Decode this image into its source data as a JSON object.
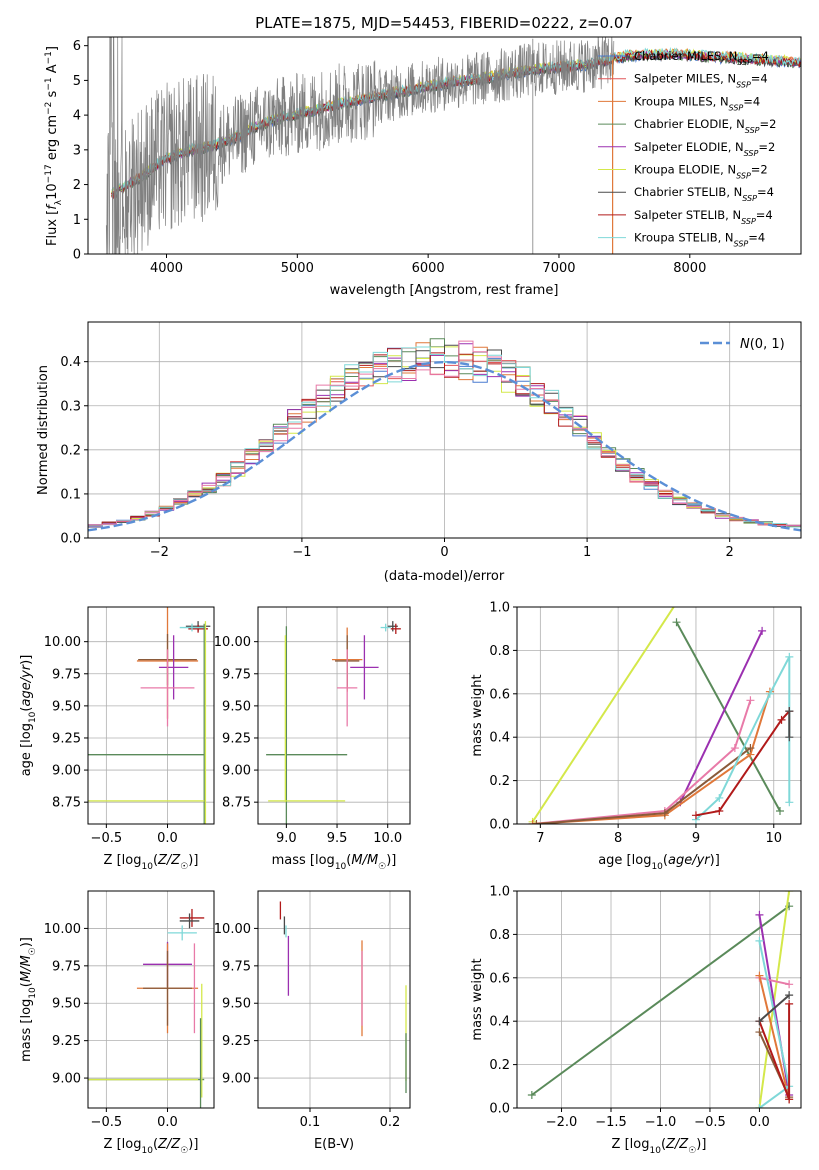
{
  "figure_title": "PLATE=1875, MJD=54453, FIBERID=0222, z=0.07",
  "colors": {
    "chabrier_miles": "#4a7bd0",
    "salpeter_miles": "#e15759",
    "kroupa_miles": "#8a5a3a",
    "chabrier_elodie": "#5a8a5a",
    "salpeter_elodie": "#9b30b0",
    "kroupa_elodie": "#d4e84a",
    "chabrier_stelib": "#4a4a4a",
    "salpeter_stelib": "#b11a1a",
    "kroupa_stelib": "#7fd8d8",
    "extra_pink": "#e87aa8",
    "extra_orange": "#e0783a",
    "data": "#808080",
    "normal": "#5b8fd6"
  },
  "chart_data": [
    {
      "id": "spectrum",
      "type": "line",
      "title": "PLATE=1875, MJD=54453, FIBERID=0222, z=0.07",
      "xlabel": "wavelength [Angstrom, rest frame]",
      "ylabel": "Flux [f_λ10^-17 erg cm^-2 s^-1 A^-1]",
      "xlim": [
        3400,
        8850
      ],
      "ylim": [
        0,
        6.25
      ],
      "xticks": [
        4000,
        5000,
        6000,
        7000,
        8000
      ],
      "yticks": [
        0,
        1,
        2,
        3,
        4,
        5,
        6
      ],
      "legend_position": "right",
      "legend": [
        {
          "main": "Chabrier MILES, N",
          "sub": "SSP",
          "tail": "=4",
          "color": "#4a7bd0"
        },
        {
          "main": "Salpeter MILES, N",
          "sub": "SSP",
          "tail": "=4",
          "color": "#e15759"
        },
        {
          "main": "Kroupa MILES, N",
          "sub": "SSP",
          "tail": "=4",
          "color": "#e0783a"
        },
        {
          "main": "Chabrier ELODIE, N",
          "sub": "SSP",
          "tail": "=2",
          "color": "#5a8a5a"
        },
        {
          "main": "Salpeter ELODIE, N",
          "sub": "SSP",
          "tail": "=2",
          "color": "#9b30b0"
        },
        {
          "main": "Kroupa ELODIE, N",
          "sub": "SSP",
          "tail": "=2",
          "color": "#d4e84a"
        },
        {
          "main": "Chabrier STELIB, N",
          "sub": "SSP",
          "tail": "=4",
          "color": "#4a4a4a"
        },
        {
          "main": "Salpeter STELIB, N",
          "sub": "SSP",
          "tail": "=4",
          "color": "#b11a1a"
        },
        {
          "main": "Kroupa STELIB, N",
          "sub": "SSP",
          "tail": "=4",
          "color": "#7fd8d8"
        }
      ],
      "continuum": {
        "x": [
          3580,
          3700,
          3800,
          3900,
          4000,
          4100,
          4200,
          4300,
          4500,
          4700,
          4900,
          5100,
          5300,
          5500,
          5700,
          5900,
          6100,
          6300,
          6500,
          6700,
          6900,
          7100,
          7300,
          7500,
          7700,
          7900,
          8100,
          8300,
          8500,
          8700,
          8850
        ],
        "y": [
          1.7,
          2.0,
          2.2,
          2.5,
          2.75,
          2.9,
          3.0,
          3.05,
          3.3,
          3.7,
          3.95,
          4.1,
          4.3,
          4.45,
          4.6,
          4.75,
          4.9,
          5.0,
          5.1,
          5.25,
          5.35,
          5.4,
          5.5,
          5.7,
          5.75,
          5.75,
          5.7,
          5.65,
          5.6,
          5.55,
          5.5
        ]
      }
    },
    {
      "id": "residuals",
      "type": "step",
      "xlabel": "(data-model)/error",
      "ylabel": "Normed distribution",
      "xlim": [
        -2.5,
        2.5
      ],
      "ylim": [
        0,
        0.49
      ],
      "xticks": [
        -2,
        -1,
        0,
        1,
        2
      ],
      "yticks": [
        0.0,
        0.1,
        0.2,
        0.3,
        0.4
      ],
      "legend": [
        {
          "label": "N(0, 1)",
          "color": "#5b8fd6"
        }
      ],
      "envelope": {
        "x": [
          -2.5,
          -2.2,
          -2.0,
          -1.8,
          -1.6,
          -1.4,
          -1.2,
          -1.0,
          -0.8,
          -0.6,
          -0.4,
          -0.2,
          0.0,
          0.2,
          0.4,
          0.6,
          0.8,
          1.0,
          1.2,
          1.4,
          1.6,
          1.8,
          2.0,
          2.2,
          2.5
        ],
        "y": [
          0.025,
          0.04,
          0.06,
          0.09,
          0.12,
          0.17,
          0.22,
          0.28,
          0.33,
          0.37,
          0.39,
          0.4,
          0.41,
          0.4,
          0.38,
          0.34,
          0.29,
          0.24,
          0.18,
          0.13,
          0.09,
          0.065,
          0.045,
          0.035,
          0.025
        ]
      }
    },
    {
      "id": "age_vs_Z",
      "type": "errorbar",
      "xlabel": "Z [log10(Z/Z☉)]",
      "ylabel": "age  [log10(age/yr)]",
      "xlim": [
        -0.65,
        0.38
      ],
      "ylim": [
        8.58,
        10.27
      ],
      "xticks": [
        -0.5,
        0.0
      ],
      "yticks": [
        8.75,
        9.0,
        9.25,
        9.5,
        9.75,
        10.0
      ],
      "points": [
        {
          "x": 0.25,
          "y": 10.12,
          "xerr": 0.1,
          "yerr": 0.04,
          "color": "#4a4a4a"
        },
        {
          "x": 0.25,
          "y": 10.1,
          "xerr": 0.08,
          "yerr": 0.03,
          "color": "#b11a1a"
        },
        {
          "x": 0.2,
          "y": 10.11,
          "xerr": 0.1,
          "yerr": 0.03,
          "color": "#7fd8d8"
        },
        {
          "x": 0.0,
          "y": 9.85,
          "xerr": 0.25,
          "yerr": 0.45,
          "color": "#e0783a"
        },
        {
          "x": 0.0,
          "y": 9.86,
          "xerr": 0.24,
          "yerr": 0.2,
          "color": "#8a5a3a"
        },
        {
          "x": 0.05,
          "y": 9.8,
          "xerr": 0.12,
          "yerr": 0.25,
          "color": "#9b30b0"
        },
        {
          "x": 0.0,
          "y": 9.64,
          "xerr": 0.22,
          "yerr": 0.3,
          "color": "#e87aa8"
        },
        {
          "x": -0.35,
          "y": 9.12,
          "xerr": 0.65,
          "yerr": 0.0,
          "color": "#5a8a5a"
        },
        {
          "x": 0.3,
          "y": 9.12,
          "xerr": 0.0,
          "yerr": 1.02,
          "color": "#5a8a5a"
        },
        {
          "x": -0.25,
          "y": 8.76,
          "xerr": 0.55,
          "yerr": 0.0,
          "color": "#d4e84a"
        },
        {
          "x": 0.31,
          "y": 8.76,
          "xerr": 0.0,
          "yerr": 1.4,
          "color": "#d4e84a"
        }
      ]
    },
    {
      "id": "age_vs_mass",
      "type": "errorbar",
      "xlabel": "mass [log10(M/M☉)]",
      "ylabel": "",
      "xlim": [
        8.72,
        10.22
      ],
      "ylim": [
        8.58,
        10.27
      ],
      "xticks": [
        9.0,
        9.5,
        10.0
      ],
      "yticks": [
        8.75,
        9.0,
        9.25,
        9.5,
        9.75,
        10.0
      ],
      "points": [
        {
          "x": 10.05,
          "y": 10.12,
          "xerr": 0.05,
          "yerr": 0.04,
          "color": "#4a4a4a"
        },
        {
          "x": 10.08,
          "y": 10.1,
          "xerr": 0.05,
          "yerr": 0.04,
          "color": "#b11a1a"
        },
        {
          "x": 9.98,
          "y": 10.11,
          "xerr": 0.05,
          "yerr": 0.03,
          "color": "#7fd8d8"
        },
        {
          "x": 9.6,
          "y": 9.86,
          "xerr": 0.15,
          "yerr": 0.25,
          "color": "#e0783a"
        },
        {
          "x": 9.6,
          "y": 9.85,
          "xerr": 0.12,
          "yerr": 0.2,
          "color": "#8a5a3a"
        },
        {
          "x": 9.77,
          "y": 9.8,
          "xerr": 0.14,
          "yerr": 0.25,
          "color": "#9b30b0"
        },
        {
          "x": 9.6,
          "y": 9.64,
          "xerr": 0.1,
          "yerr": 0.3,
          "color": "#e87aa8"
        },
        {
          "x": 9.2,
          "y": 9.12,
          "xerr": 0.4,
          "yerr": 0.0,
          "color": "#5a8a5a"
        },
        {
          "x": 9.0,
          "y": 9.12,
          "xerr": 0.0,
          "yerr": 1.0,
          "color": "#5a8a5a"
        },
        {
          "x": 9.2,
          "y": 8.76,
          "xerr": 0.38,
          "yerr": 0.0,
          "color": "#d4e84a"
        },
        {
          "x": 8.99,
          "y": 9.4,
          "xerr": 0.0,
          "yerr": 0.65,
          "color": "#d4e84a"
        }
      ]
    },
    {
      "id": "massweight_vs_age",
      "type": "line",
      "xlabel": "age  [log10(age/yr)]",
      "ylabel": "mass weight",
      "xlim": [
        6.7,
        10.35
      ],
      "ylim": [
        0,
        1.0
      ],
      "xticks": [
        7,
        8,
        9,
        10
      ],
      "yticks": [
        0.0,
        0.2,
        0.4,
        0.6,
        0.8,
        1.0
      ],
      "series": [
        {
          "color": "#d4e84a",
          "x": [
            6.9,
            8.75
          ],
          "y": [
            0.01,
            1.02
          ]
        },
        {
          "color": "#5a8a5a",
          "x": [
            8.75,
            10.08
          ],
          "y": [
            0.93,
            0.06
          ]
        },
        {
          "color": "#9b30b0",
          "x": [
            8.8,
            9.85
          ],
          "y": [
            0.1,
            0.89
          ]
        },
        {
          "color": "#e87aa8",
          "x": [
            6.9,
            8.6,
            9.5,
            9.7
          ],
          "y": [
            0.0,
            0.06,
            0.35,
            0.57
          ]
        },
        {
          "color": "#e0783a",
          "x": [
            6.9,
            8.6,
            9.7,
            9.95
          ],
          "y": [
            0.0,
            0.04,
            0.32,
            0.61
          ]
        },
        {
          "color": "#8a5a3a",
          "x": [
            6.95,
            8.6,
            9.7
          ],
          "y": [
            0.0,
            0.05,
            0.35
          ]
        },
        {
          "color": "#7fd8d8",
          "x": [
            9.0,
            9.3,
            9.95,
            10.2,
            10.2
          ],
          "y": [
            0.02,
            0.12,
            0.6,
            0.77,
            0.1
          ]
        },
        {
          "color": "#b11a1a",
          "x": [
            9.0,
            9.3,
            10.1,
            10.2
          ],
          "y": [
            0.04,
            0.06,
            0.48,
            0.52
          ]
        },
        {
          "color": "#4a4a4a",
          "x": [
            10.2,
            10.2
          ],
          "y": [
            0.4,
            0.52
          ]
        }
      ]
    },
    {
      "id": "mass_vs_Z",
      "type": "errorbar",
      "xlabel": "Z [log10(Z/Z☉)]",
      "ylabel": "mass [log10(M/M☉)]",
      "xlim": [
        -0.65,
        0.38
      ],
      "ylim": [
        8.8,
        10.25
      ],
      "xticks": [
        -0.5,
        0.0
      ],
      "yticks": [
        9.0,
        9.25,
        9.5,
        9.75,
        10.0
      ],
      "points": [
        {
          "x": 0.2,
          "y": 10.07,
          "xerr": 0.1,
          "yerr": 0.06,
          "color": "#b11a1a"
        },
        {
          "x": 0.18,
          "y": 10.05,
          "xerr": 0.08,
          "yerr": 0.05,
          "color": "#4a4a4a"
        },
        {
          "x": 0.12,
          "y": 9.97,
          "xerr": 0.12,
          "yerr": 0.05,
          "color": "#7fd8d8"
        },
        {
          "x": 0.0,
          "y": 9.76,
          "xerr": 0.2,
          "yerr": 0.15,
          "color": "#9b30b0"
        },
        {
          "x": 0.0,
          "y": 9.6,
          "xerr": 0.25,
          "yerr": 0.3,
          "color": "#e0783a"
        },
        {
          "x": 0.0,
          "y": 9.6,
          "xerr": 0.2,
          "yerr": 0.25,
          "color": "#8a5a3a"
        },
        {
          "x": 0.22,
          "y": 9.6,
          "xerr": 0.0,
          "yerr": 0.3,
          "color": "#e87aa8"
        },
        {
          "x": -0.3,
          "y": 8.99,
          "xerr": 0.6,
          "yerr": 0.0,
          "color": "#5a8a5a"
        },
        {
          "x": 0.28,
          "y": 9.25,
          "xerr": 0.0,
          "yerr": 0.38,
          "color": "#d4e84a"
        },
        {
          "x": 0.27,
          "y": 9.1,
          "xerr": 0.0,
          "yerr": 0.3,
          "color": "#5a8a5a"
        },
        {
          "x": -0.3,
          "y": 8.99,
          "xerr": 0.55,
          "yerr": 0.0,
          "color": "#d4e84a"
        }
      ]
    },
    {
      "id": "mass_vs_ebv",
      "type": "errorbar",
      "xlabel": "E(B-V)",
      "ylabel": "",
      "xlim": [
        0.035,
        0.225
      ],
      "ylim": [
        8.8,
        10.25
      ],
      "xticks": [
        0.1,
        0.2
      ],
      "yticks": [
        9.0,
        9.25,
        9.5,
        9.75,
        10.0
      ],
      "points": [
        {
          "x": 0.063,
          "y": 10.12,
          "xerr": 0.0,
          "yerr": 0.06,
          "color": "#b11a1a"
        },
        {
          "x": 0.068,
          "y": 10.02,
          "xerr": 0.0,
          "yerr": 0.06,
          "color": "#4a4a4a"
        },
        {
          "x": 0.07,
          "y": 9.98,
          "xerr": 0.0,
          "yerr": 0.04,
          "color": "#7fd8d8"
        },
        {
          "x": 0.073,
          "y": 9.75,
          "xerr": 0.0,
          "yerr": 0.2,
          "color": "#9b30b0"
        },
        {
          "x": 0.165,
          "y": 9.6,
          "xerr": 0.0,
          "yerr": 0.32,
          "color": "#e0783a"
        },
        {
          "x": 0.165,
          "y": 9.6,
          "xerr": 0.0,
          "yerr": 0.25,
          "color": "#e87aa8"
        },
        {
          "x": 0.22,
          "y": 9.3,
          "xerr": 0.0,
          "yerr": 0.32,
          "color": "#d4e84a"
        },
        {
          "x": 0.22,
          "y": 9.1,
          "xerr": 0.0,
          "yerr": 0.2,
          "color": "#5a8a5a"
        }
      ]
    },
    {
      "id": "massweight_vs_Z",
      "type": "line",
      "xlabel": "Z [log10(Z/Z☉)]",
      "ylabel": "mass weight",
      "xlim": [
        -2.45,
        0.42
      ],
      "ylim": [
        0,
        1.0
      ],
      "xticks": [
        -2.0,
        -1.5,
        -1.0,
        -0.5,
        0.0
      ],
      "yticks": [
        0.0,
        0.2,
        0.4,
        0.6,
        0.8,
        1.0
      ],
      "series": [
        {
          "color": "#5a8a5a",
          "x": [
            -2.3,
            0.3
          ],
          "y": [
            0.06,
            0.93
          ]
        },
        {
          "color": "#d4e84a",
          "x": [
            0.0,
            0.3
          ],
          "y": [
            0.0,
            1.0
          ]
        },
        {
          "color": "#9b30b0",
          "x": [
            0.0,
            0.3
          ],
          "y": [
            0.89,
            0.06
          ]
        },
        {
          "color": "#e87aa8",
          "x": [
            0.0,
            0.3
          ],
          "y": [
            0.6,
            0.57
          ]
        },
        {
          "color": "#e0783a",
          "x": [
            0.0,
            0.3
          ],
          "y": [
            0.61,
            0.04
          ]
        },
        {
          "color": "#8a5a3a",
          "x": [
            0.0,
            0.3
          ],
          "y": [
            0.35,
            0.05
          ]
        },
        {
          "color": "#7fd8d8",
          "x": [
            0.0,
            0.3,
            0.0
          ],
          "y": [
            0.0,
            0.1,
            0.77
          ]
        },
        {
          "color": "#b11a1a",
          "x": [
            0.0,
            0.3,
            0.3
          ],
          "y": [
            0.4,
            0.04,
            0.48
          ]
        },
        {
          "color": "#4a4a4a",
          "x": [
            0.0,
            0.3
          ],
          "y": [
            0.4,
            0.52
          ]
        }
      ]
    }
  ]
}
